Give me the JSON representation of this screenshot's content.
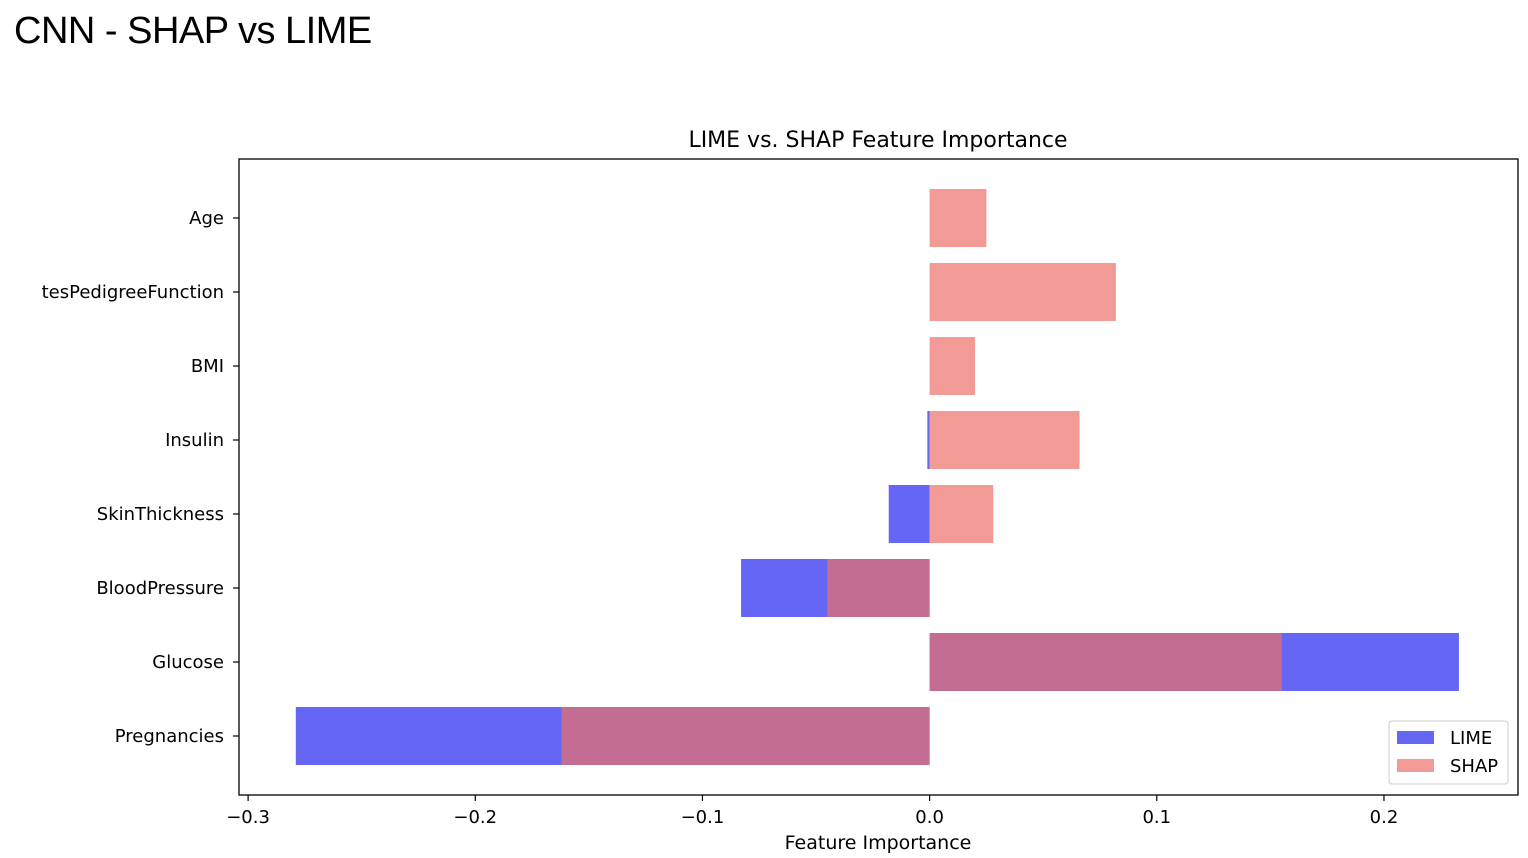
{
  "slide": {
    "title": "CNN - SHAP vs LIME"
  },
  "chart_data": {
    "type": "bar",
    "orientation": "horizontal",
    "title": "LIME vs. SHAP Feature Importance",
    "xlabel": "Feature Importance",
    "ylabel": "",
    "categories": [
      "Pregnancies",
      "Glucose",
      "BloodPressure",
      "SkinThickness",
      "Insulin",
      "BMI",
      "tesPedigreeFunction",
      "Age"
    ],
    "series": [
      {
        "name": "LIME",
        "color": "#6666f4",
        "values": [
          -0.279,
          0.233,
          -0.083,
          -0.018,
          -0.001,
          0.0,
          0.0,
          0.0
        ]
      },
      {
        "name": "SHAP",
        "color": "#ec706a",
        "alpha": 0.7,
        "values": [
          -0.162,
          0.155,
          -0.045,
          0.028,
          0.066,
          0.02,
          0.082,
          0.025
        ]
      }
    ],
    "xlim": [
      -0.304,
      0.259
    ],
    "xticks": [
      "−0.3",
      "−0.2",
      "−0.1",
      "0.0",
      "0.1",
      "0.2"
    ],
    "xtick_values": [
      -0.3,
      -0.2,
      -0.1,
      0.0,
      0.1,
      0.2
    ],
    "legend": {
      "position": "lower-right",
      "entries": [
        "LIME",
        "SHAP"
      ]
    },
    "grid": false,
    "overlap_color": "#b23761"
  }
}
